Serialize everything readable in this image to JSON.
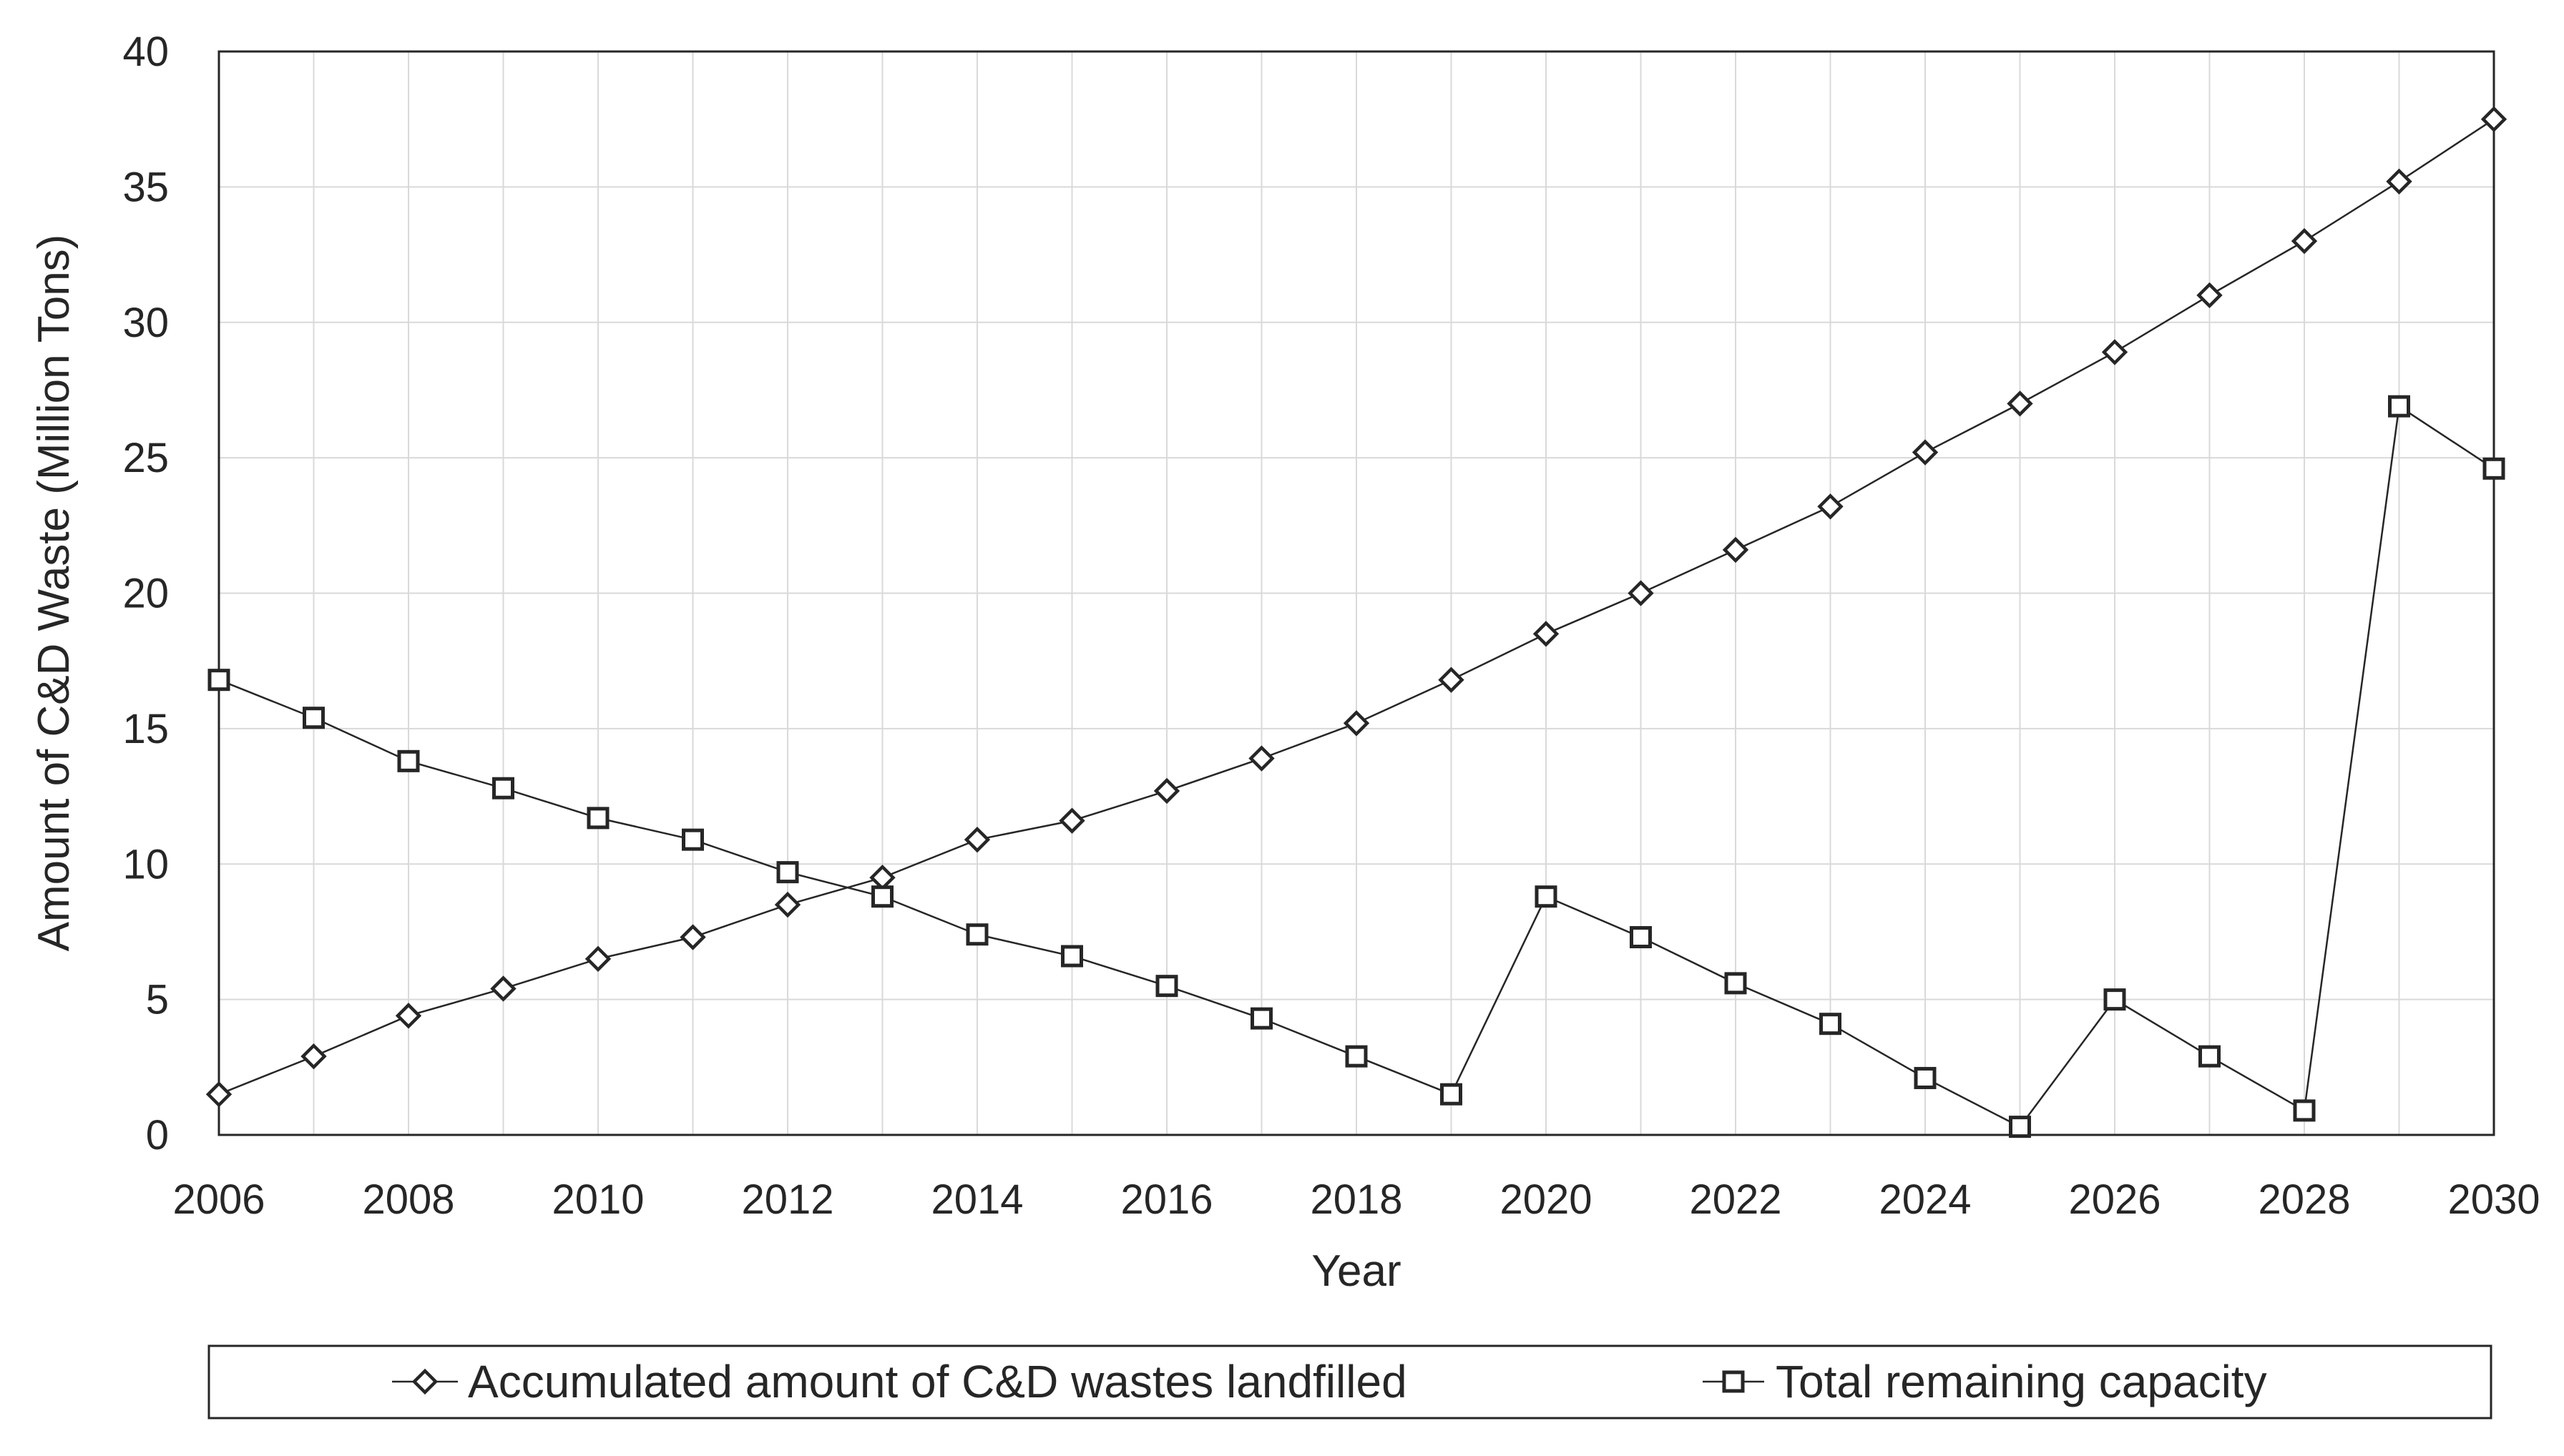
{
  "chart_data": {
    "type": "line",
    "title": "",
    "xlabel": "Year",
    "ylabel": "Amount of C&D Waste (Million Tons)",
    "xlim": [
      2006,
      2030
    ],
    "ylim": [
      0,
      40
    ],
    "x_ticks": [
      "2006",
      "2008",
      "2010",
      "2012",
      "2014",
      "2016",
      "2018",
      "2020",
      "2022",
      "2024",
      "2026",
      "2028",
      "2030"
    ],
    "y_ticks": [
      "0",
      "5",
      "10",
      "15",
      "20",
      "25",
      "30",
      "35",
      "40"
    ],
    "grid": true,
    "legend_position": "bottom",
    "x": [
      2006,
      2007,
      2008,
      2009,
      2010,
      2011,
      2012,
      2013,
      2014,
      2015,
      2016,
      2017,
      2018,
      2019,
      2020,
      2021,
      2022,
      2023,
      2024,
      2025,
      2026,
      2027,
      2028,
      2029,
      2030
    ],
    "series": [
      {
        "name": "Accumulated amount of C&D wastes landfilled",
        "marker": "diamond",
        "values": [
          1.5,
          2.9,
          4.4,
          5.4,
          6.5,
          7.3,
          8.5,
          9.5,
          10.9,
          11.6,
          12.7,
          13.9,
          15.2,
          16.8,
          18.5,
          20.0,
          21.6,
          23.2,
          25.2,
          27.0,
          28.9,
          31.0,
          33.0,
          35.2,
          37.5
        ]
      },
      {
        "name": "Total remaining capacity",
        "marker": "square",
        "values": [
          16.8,
          15.4,
          13.8,
          12.8,
          11.7,
          10.9,
          9.7,
          8.8,
          7.4,
          6.6,
          5.5,
          4.3,
          2.9,
          1.5,
          8.8,
          7.3,
          5.6,
          4.1,
          2.1,
          0.3,
          5.0,
          2.9,
          0.9,
          26.9,
          24.6
        ]
      }
    ],
    "colors": {
      "line": "#262626",
      "grid": "#d9d9d9",
      "frame": "#262626",
      "background": "#ffffff"
    }
  }
}
